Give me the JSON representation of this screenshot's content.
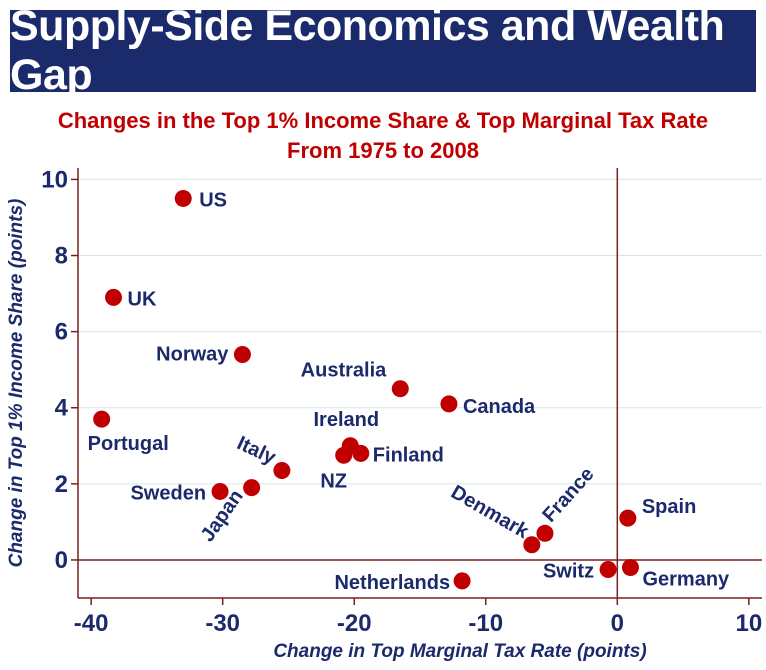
{
  "header": {
    "title": "Supply-Side Economics and Wealth Gap"
  },
  "chart_data": {
    "type": "scatter",
    "title": "Changes in the Top 1% Income Share & Top Marginal Tax Rate",
    "subtitle": "From 1975 to 2008",
    "xlabel": "Change in Top Marginal Tax Rate (points)",
    "ylabel": "Change in Top 1% Income Share (points)",
    "xlim": [
      -41,
      11
    ],
    "ylim": [
      -1,
      10.3
    ],
    "xticks": [
      -40,
      -30,
      -20,
      -10,
      0,
      10
    ],
    "yticks": [
      0,
      2,
      4,
      6,
      8,
      10
    ],
    "grid": true,
    "reference_lines": {
      "x": 0,
      "y": 0
    },
    "marker_color": "#c00000",
    "points": [
      {
        "name": "US",
        "x": -33,
        "y": 9.5
      },
      {
        "name": "UK",
        "x": -38.3,
        "y": 6.9
      },
      {
        "name": "Norway",
        "x": -28.5,
        "y": 5.4
      },
      {
        "name": "Portugal",
        "x": -39.2,
        "y": 3.7
      },
      {
        "name": "Australia",
        "x": -16.5,
        "y": 4.5
      },
      {
        "name": "Canada",
        "x": -12.8,
        "y": 4.1
      },
      {
        "name": "Ireland",
        "x": -20.3,
        "y": 3.0
      },
      {
        "name": "Finland",
        "x": -19.5,
        "y": 2.8
      },
      {
        "name": "NZ",
        "x": -20.8,
        "y": 2.75
      },
      {
        "name": "Italy",
        "x": -25.5,
        "y": 2.35
      },
      {
        "name": "Sweden",
        "x": -30.2,
        "y": 1.8
      },
      {
        "name": "Japan",
        "x": -27.8,
        "y": 1.9
      },
      {
        "name": "Denmark",
        "x": -6.5,
        "y": 0.4
      },
      {
        "name": "France",
        "x": -5.5,
        "y": 0.7
      },
      {
        "name": "Spain",
        "x": 0.8,
        "y": 1.1
      },
      {
        "name": "Switz",
        "x": -0.7,
        "y": -0.25
      },
      {
        "name": "Germany",
        "x": 1.0,
        "y": -0.2
      },
      {
        "name": "Netherlands",
        "x": -11.8,
        "y": -0.55
      }
    ]
  }
}
